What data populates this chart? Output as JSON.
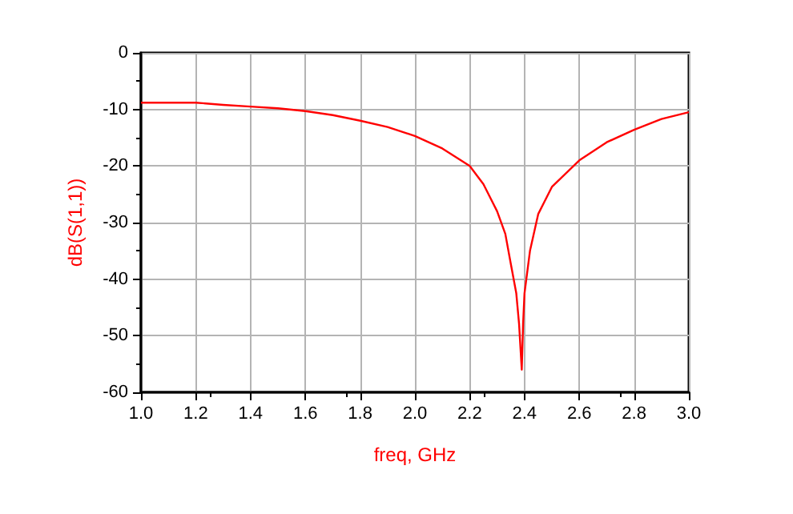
{
  "chart_data": {
    "type": "line",
    "xlabel": "freq, GHz",
    "ylabel": "dB(S(1,1))",
    "series": [
      {
        "color": "#ff0000",
        "x": [
          1.0,
          1.2,
          1.3,
          1.4,
          1.5,
          1.6,
          1.7,
          1.8,
          1.9,
          2.0,
          2.1,
          2.2,
          2.25,
          2.3,
          2.33,
          2.35,
          2.37,
          2.38,
          2.39,
          2.395,
          2.4,
          2.42,
          2.45,
          2.5,
          2.6,
          2.7,
          2.8,
          2.9,
          3.0
        ],
        "values": [
          -8.8,
          -8.8,
          -9.2,
          -9.5,
          -9.8,
          -10.3,
          -11,
          -12,
          -13.1,
          -14.7,
          -16.9,
          -20,
          -23.2,
          -28,
          -32,
          -37.3,
          -42.5,
          -47.8,
          -56,
          -47.8,
          -42.5,
          -35,
          -28.5,
          -23.7,
          -19,
          -15.8,
          -13.6,
          -11.7,
          -10.5
        ]
      }
    ],
    "xlim": [
      1.0,
      3.0
    ],
    "xticks": [
      {
        "value": 1.0,
        "label": "1.0"
      },
      1.2,
      1.4,
      1.6,
      1.8,
      {
        "value": 2.0,
        "label": "2.0"
      },
      2.2,
      2.4,
      2.6,
      2.8,
      {
        "value": 3.0,
        "label": "3.0"
      }
    ],
    "ylim": [
      -60,
      0
    ],
    "yticks": [
      -60,
      -50,
      -40,
      -30,
      -20,
      -10,
      0
    ],
    "grid": true,
    "marker": "none",
    "line_style": "solid"
  }
}
